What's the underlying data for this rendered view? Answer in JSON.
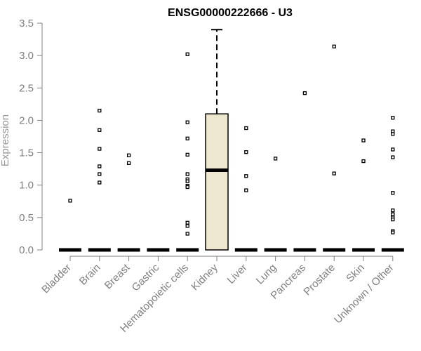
{
  "chart_data": {
    "type": "box",
    "title": "ENSG00000222666 - U3",
    "xlabel": "",
    "ylabel": "Expression",
    "ylim": [
      0,
      3.5
    ],
    "yticks": [
      "0.0",
      "0.5",
      "1.0",
      "1.5",
      "2.0",
      "2.5",
      "3.0",
      "3.5"
    ],
    "grid": false,
    "categories": [
      "Bladder",
      "Brain",
      "Breast",
      "Gastric",
      "Hematopoietic cells",
      "Kidney",
      "Liver",
      "Lung",
      "Pancreas",
      "Prostate",
      "Skin",
      "Unknown / Other"
    ],
    "boxes": [
      {
        "median": 0,
        "q1": 0,
        "q3": 0,
        "whisker_low": 0,
        "whisker_high": 0,
        "outliers": [
          0.76
        ]
      },
      {
        "median": 0,
        "q1": 0,
        "q3": 0,
        "whisker_low": 0,
        "whisker_high": 0,
        "outliers": [
          2.15,
          1.85,
          1.56,
          1.29,
          1.17,
          1.04
        ]
      },
      {
        "median": 0,
        "q1": 0,
        "q3": 0,
        "whisker_low": 0,
        "whisker_high": 0,
        "outliers": [
          1.46,
          1.34
        ]
      },
      {
        "median": 0,
        "q1": 0,
        "q3": 0,
        "whisker_low": 0,
        "whisker_high": 0,
        "outliers": []
      },
      {
        "median": 0,
        "q1": 0,
        "q3": 0,
        "whisker_low": 0,
        "whisker_high": 0,
        "outliers": [
          3.02,
          1.97,
          1.72,
          1.47,
          1.17,
          1.09,
          1.06,
          0.99,
          0.97,
          0.42,
          0.37,
          0.25
        ]
      },
      {
        "median": 1.23,
        "q1": 0,
        "q3": 2.1,
        "whisker_low": 0,
        "whisker_high": 3.4,
        "outliers": [],
        "fill": "#ede7d0"
      },
      {
        "median": 0,
        "q1": 0,
        "q3": 0,
        "whisker_low": 0,
        "whisker_high": 0,
        "outliers": [
          1.88,
          1.51,
          1.14,
          0.92
        ]
      },
      {
        "median": 0,
        "q1": 0,
        "q3": 0,
        "whisker_low": 0,
        "whisker_high": 0,
        "outliers": [
          1.41
        ]
      },
      {
        "median": 0,
        "q1": 0,
        "q3": 0,
        "whisker_low": 0,
        "whisker_high": 0,
        "outliers": [
          2.42
        ]
      },
      {
        "median": 0,
        "q1": 0,
        "q3": 0,
        "whisker_low": 0,
        "whisker_high": 0,
        "outliers": [
          3.14,
          1.18
        ]
      },
      {
        "median": 0,
        "q1": 0,
        "q3": 0,
        "whisker_low": 0,
        "whisker_high": 0,
        "outliers": [
          1.69,
          1.37
        ]
      },
      {
        "median": 0,
        "q1": 0,
        "q3": 0,
        "whisker_low": 0,
        "whisker_high": 0,
        "outliers": [
          2.04,
          1.83,
          1.79,
          1.55,
          1.43,
          0.88,
          0.61,
          0.55,
          0.5,
          0.47,
          0.29,
          0.27
        ]
      }
    ],
    "colors": {
      "box_fill": "#ede7d0",
      "stroke": "#000000",
      "axis_text": "#808080",
      "axis_line": "#808080"
    }
  }
}
